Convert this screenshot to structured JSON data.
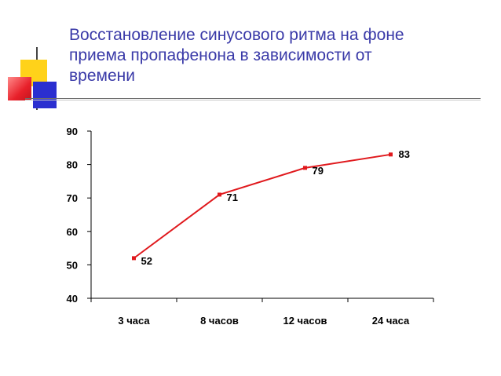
{
  "title": "Восстановление синусового ритма на фоне\nприема  пропафенона в зависимости от\nвремени",
  "colors": {
    "series": "#e0191d",
    "title": "#3a3aa8"
  },
  "chart_data": {
    "type": "line",
    "categories": [
      "3 часа",
      "8 часов",
      "12 часов",
      "24 часа"
    ],
    "series": [
      {
        "values": [
          52,
          71,
          79,
          83
        ]
      }
    ],
    "data_labels": [
      "52",
      "71",
      "79",
      "83"
    ],
    "ylim": [
      40,
      90
    ],
    "yticks": [
      40,
      50,
      60,
      70,
      80,
      90
    ],
    "grid": false,
    "legend": "none"
  }
}
